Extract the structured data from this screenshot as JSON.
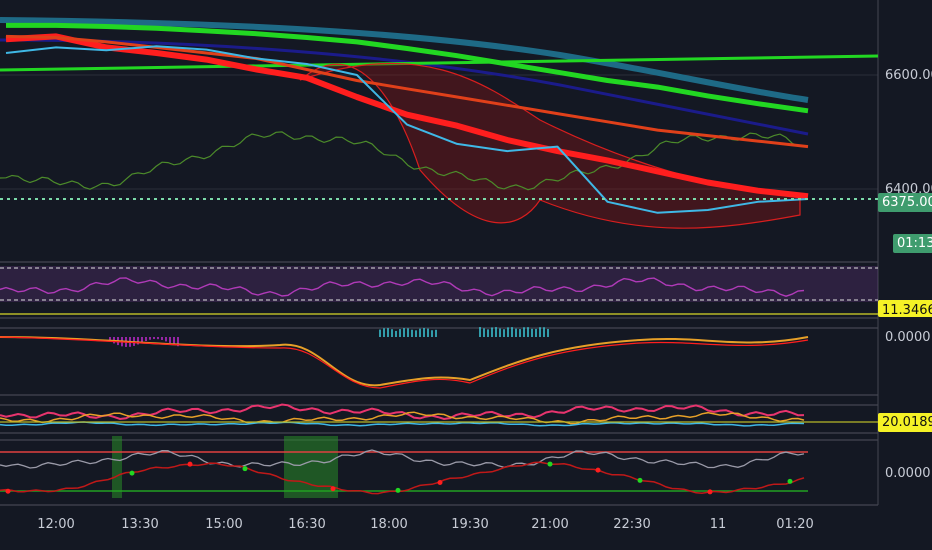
{
  "price_axis": {
    "upper_label": "6600.00",
    "mid_label": "6400.00",
    "last_price": "6375.00",
    "countdown": "01:13"
  },
  "indicators": {
    "rsi_value": "11.3466",
    "macd_value": "0.0000",
    "dmi_value": "20.0189",
    "osc_value": "0.0000"
  },
  "time_axis": [
    "12:00",
    "13:30",
    "15:00",
    "16:30",
    "18:00",
    "19:30",
    "21:00",
    "22:30",
    "11",
    "01:20"
  ],
  "colors": {
    "background": "#141823",
    "last_price_tag": "#3f9c6e",
    "indicator_tag": "#f5f226",
    "ema_green": "#22d722",
    "ema_red": "#ff1e1e",
    "teal_ma": "#1e6a86",
    "navy_ma": "#1b1b8a",
    "bb_band": "#d81e1e",
    "price_line": "#3fb8e6",
    "rsi_line": "#b03ab8",
    "macd_orange": "#e7a028",
    "dmi_pink": "#e8346e"
  },
  "chart_data": {
    "type": "line",
    "title": "",
    "y_ticks": [
      6600,
      6400
    ],
    "last_price": 6375,
    "x_ticks": [
      "12:00",
      "13:30",
      "15:00",
      "16:30",
      "18:00",
      "19:30",
      "21:00",
      "22:30",
      "11",
      "01:20"
    ],
    "series": [
      {
        "values": [
          6665,
          6670,
          6650,
          6640,
          6628,
          6610,
          6595,
          6560,
          6528,
          6508,
          6482,
          6462,
          6445,
          6425,
          6405,
          6390,
          6380
        ]
      },
      {
        "values": [
          6690,
          6690,
          6688,
          6685,
          6680,
          6675,
          6668,
          6660,
          6648,
          6635,
          6620,
          6605,
          6590,
          6578,
          6562,
          6548,
          6535
        ]
      },
      {
        "values": [
          6670,
          6668,
          6660,
          6650,
          6640,
          6630,
          6610,
          6590,
          6575,
          6560,
          6545,
          6530,
          6515,
          6500,
          6490,
          6480,
          6470
        ]
      },
      {
        "values": [
          6640,
          6650,
          6645,
          6652,
          6646,
          6630,
          6620,
          6600,
          6510,
          6475,
          6462,
          6470,
          6370,
          6350,
          6355,
          6370,
          6375
        ]
      }
    ]
  }
}
